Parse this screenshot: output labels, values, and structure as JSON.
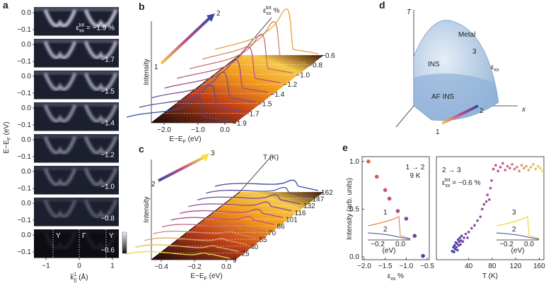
{
  "panel_a": {
    "letter": "a",
    "strain_labels": [
      {
        "base": "ε",
        "sub": "xx",
        "sup": "tot",
        "tail": " = −1.9 %"
      },
      "−1.7",
      "−1.5",
      "−1.4",
      "−1.2",
      "−1.0",
      "−0.8",
      "−0.6"
    ],
    "y_tick_labels": [
      "0.0",
      "−0.1"
    ],
    "y_label": {
      "base": "E−E",
      "sub": "F",
      "tail": " (eV)"
    },
    "x_tick_labels": [
      "−1",
      "0",
      "1"
    ],
    "x_label": {
      "base": "k",
      "sub": "||",
      "tail": " (Å",
      "sup": "−1",
      "end": ")"
    },
    "points": [
      "Y",
      "Γ",
      "Y"
    ]
  },
  "panel_b": {
    "letter": "b",
    "arrow_start": "1",
    "arrow_end": "2",
    "curve_labels": [
      "−0.6",
      "−0.8",
      "−1.0",
      "−1.2",
      "−1.4",
      "−1.5",
      "−1.7",
      "−1.9"
    ],
    "curve_title": {
      "base": "ε",
      "sub": "xx",
      "sup": "tot",
      "tail": " %"
    },
    "y_label": "Intensity",
    "x_tick_labels": [
      "−2.0",
      "−1.0",
      "0.0"
    ],
    "x_label": {
      "base": "E−E",
      "sub": "F",
      "tail": " (eV)"
    }
  },
  "panel_c": {
    "letter": "c",
    "arrow_start": "2",
    "arrow_end": "3",
    "curve_labels": [
      "162",
      "147",
      "132",
      "116",
      "101",
      "86",
      "70",
      "55",
      "40",
      "25",
      "9"
    ],
    "curve_title": "T (K)",
    "y_label": "Intensity",
    "x_tick_labels": [
      "−0.4",
      "−0.2",
      "0.0"
    ],
    "x_label": {
      "base": "E−E",
      "sub": "F",
      "tail": " (eV)"
    }
  },
  "panel_d": {
    "letter": "d",
    "axis_t": "T",
    "axis_x": "x",
    "axis_e": {
      "base": "ε",
      "sub": "xx"
    },
    "phases": [
      "Metal",
      "INS",
      "AF INS"
    ],
    "states": [
      "1",
      "2",
      "3"
    ]
  },
  "panel_e": {
    "letter": "e",
    "y_label": "Intensity (arb. units)"
  },
  "chart_data": [
    {
      "type": "scatter",
      "annotation": "1 → 2",
      "annotation2": "9 K",
      "x_label": {
        "base": "ε",
        "sub": "xx",
        "tail": " %"
      },
      "x": [
        -1.9,
        -1.7,
        -1.5,
        -1.4,
        -1.2,
        -1.0,
        -0.8,
        -0.6
      ],
      "values": [
        1.0,
        0.84,
        0.7,
        0.61,
        0.48,
        0.4,
        0.22,
        0.01
      ],
      "colors": [
        "#e0604a",
        "#d8585a",
        "#d05468",
        "#c44f78",
        "#b04a8c",
        "#8e47a0",
        "#5f4aac",
        "#3c4aa8"
      ],
      "xlim": [
        -2.05,
        -0.45
      ],
      "ylim": [
        -0.03,
        1.05
      ],
      "xticks": [
        {
          "value": -2.0,
          "label": "−2.0"
        },
        {
          "value": -1.5,
          "label": "−1.5"
        },
        {
          "value": -1.0,
          "label": "−1.0"
        },
        {
          "value": -0.5,
          "label": "−0.5"
        }
      ],
      "yticks": [
        {
          "value": 0,
          "label": "0.0"
        },
        {
          "value": 0.5,
          "label": "0.5"
        },
        {
          "value": 1.0,
          "label": "1.0"
        }
      ],
      "inset": {
        "labels": [
          "1",
          "2"
        ],
        "ticks": [
          "−0.2",
          "0.0"
        ],
        "unit": "(eV)"
      }
    },
    {
      "type": "scatter",
      "annotation": "2 → 3",
      "annotation2": {
        "base": "ε",
        "sub": "xx",
        "sup": "tot",
        "tail": " = −0.6 %"
      },
      "x_label": "T (K)",
      "x": [
        12,
        14,
        15,
        16,
        17,
        18,
        19,
        20,
        21,
        22,
        23,
        24,
        25,
        26,
        27,
        28,
        30,
        32,
        35,
        38,
        40,
        45,
        50,
        55,
        60,
        63,
        66,
        70,
        72,
        75,
        77,
        79,
        82,
        86,
        90,
        94,
        98,
        102,
        106,
        110,
        114,
        118,
        122,
        126,
        130,
        134,
        138,
        142,
        146,
        150,
        154,
        158,
        162,
        166
      ],
      "values": [
        0.06,
        0.1,
        0.05,
        0.12,
        0.08,
        0.15,
        0.1,
        0.14,
        0.07,
        0.18,
        0.12,
        0.16,
        0.2,
        0.13,
        0.17,
        0.22,
        0.16,
        0.2,
        0.24,
        0.2,
        0.26,
        0.3,
        0.33,
        0.38,
        0.42,
        0.5,
        0.55,
        0.58,
        0.65,
        0.6,
        0.72,
        0.8,
        0.92,
        0.96,
        0.9,
        0.94,
        0.98,
        0.91,
        0.95,
        0.93,
        0.97,
        0.92,
        0.94,
        0.9,
        0.96,
        0.93,
        0.95,
        0.91,
        0.94,
        0.97,
        0.92,
        0.95,
        0.93,
        0.9
      ],
      "color_stops": [
        "#3a3f9e",
        "#7a46a8",
        "#c64f96",
        "#e8d84a"
      ],
      "xlim": [
        -15,
        168
      ],
      "ylim": [
        -0.03,
        1.05
      ],
      "xticks": [
        40,
        80,
        120,
        160
      ],
      "inset": {
        "labels": [
          "3",
          "2"
        ],
        "ticks": [
          "−0.2",
          "0.0"
        ],
        "unit": "(eV)"
      }
    }
  ]
}
